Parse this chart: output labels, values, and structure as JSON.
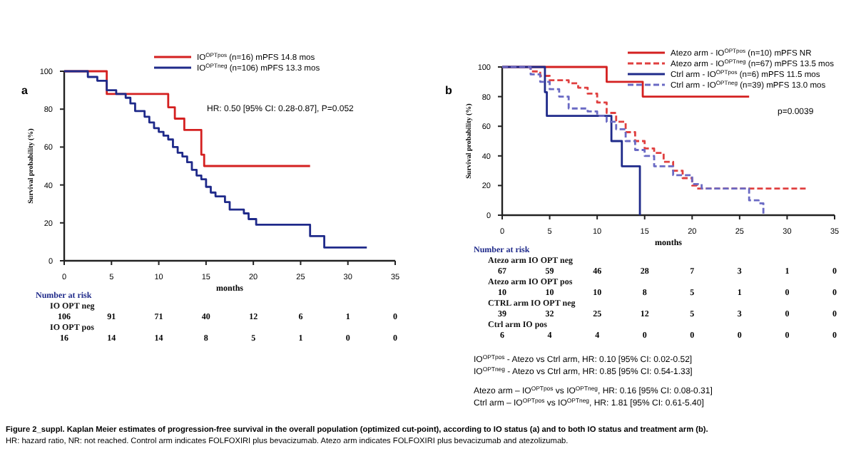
{
  "chart_data": [
    {
      "type": "step",
      "title": "a",
      "xlabel": "months",
      "ylabel": "Survival probability (%)",
      "xlim": [
        0,
        35
      ],
      "xticks": [
        0,
        5,
        10,
        15,
        20,
        25,
        30,
        35
      ],
      "ylim": [
        0,
        100
      ],
      "yticks": [
        0,
        20,
        40,
        60,
        80,
        100
      ],
      "legend": "top right",
      "series": [
        {
          "name": "IO$^{OPTpos}$ (n=16) mPFS 14.8 mos",
          "color": "#d42020",
          "line_style": "solid",
          "x": [
            0,
            4.5,
            11,
            11.7,
            12.7,
            14.5,
            14.8,
            26
          ],
          "values": [
            100,
            88,
            81,
            75,
            69,
            56,
            50,
            50
          ]
        },
        {
          "name": "IO$^{OPTneg}$ (n=106) mPFS 13.3 mos",
          "color": "#1f2a8a",
          "line_style": "solid",
          "x": [
            0,
            2.5,
            3.5,
            4.5,
            5.5,
            6.5,
            7,
            7.5,
            8.5,
            9,
            9.5,
            10,
            10.5,
            11,
            11.5,
            12,
            12.5,
            13,
            13.5,
            14,
            14.5,
            15,
            15.5,
            16,
            17,
            17.5,
            19,
            19.5,
            20.3,
            26,
            27.5,
            32
          ],
          "values": [
            100,
            97,
            95,
            90,
            88,
            86,
            83,
            79,
            76,
            73,
            70,
            68,
            66,
            64,
            60,
            57,
            55,
            52,
            48,
            45,
            43,
            39,
            36,
            34,
            31,
            27,
            25,
            22,
            19,
            13,
            7,
            7
          ]
        }
      ],
      "annotations": [
        "HR: 0.50 [95% CI: 0.28-0.87], P=0.052",
        "Number at risk",
        "IO OPT neg",
        "106 91 71 40 12 6 1 0",
        "IO OPT pos",
        "16 14 14 8 5 1 0 0"
      ]
    },
    {
      "type": "step",
      "title": "b",
      "xlabel": "months",
      "ylabel": "Survival probability (%)",
      "xlim": [
        0,
        35
      ],
      "xticks": [
        0,
        5,
        10,
        15,
        20,
        25,
        30,
        35
      ],
      "ylim": [
        0,
        100
      ],
      "yticks": [
        0,
        20,
        40,
        60,
        80,
        100
      ],
      "legend": "top right",
      "series": [
        {
          "name": "Atezo arm - IO$^{OPTpos}$ (n=10) mPFS NR",
          "color": "#d42020",
          "line_style": "solid",
          "x": [
            0,
            11,
            14.8,
            26
          ],
          "values": [
            100,
            90,
            80,
            80
          ]
        },
        {
          "name": "Atezo arm - IO$^{OPTneg}$ (n=67) mPFS 13.5 mos",
          "color": "#e04040",
          "line_style": "dashed",
          "x": [
            0,
            3,
            4,
            5,
            7,
            8,
            9,
            10,
            11,
            12,
            13,
            14,
            15,
            16,
            17,
            18,
            19,
            20,
            20.5,
            32
          ],
          "values": [
            100,
            97,
            94,
            91,
            89,
            86,
            82,
            76,
            69,
            63,
            56,
            50,
            45,
            42,
            36,
            30,
            25,
            20,
            18,
            18
          ]
        },
        {
          "name": "Ctrl arm - IO$^{OPTpos}$ (n=6) mPFS 11.5 mos",
          "color": "#1f2a8a",
          "line_style": "solid",
          "x": [
            0,
            4.5,
            4.7,
            11.5,
            12.6,
            14.5
          ],
          "values": [
            100,
            83,
            67,
            50,
            33,
            0
          ]
        },
        {
          "name": "Ctrl arm - IO$^{OPTneg}$ (n=39) mPFS 13.0 mos",
          "color": "#6a6ac4",
          "line_style": "dashed",
          "x": [
            0,
            3,
            4,
            5,
            6,
            7,
            9,
            10,
            11,
            12,
            13,
            14,
            15,
            16,
            18,
            20,
            21,
            26,
            27,
            27.5
          ],
          "values": [
            100,
            95,
            90,
            85,
            80,
            72,
            70,
            67,
            63,
            58,
            50,
            44,
            40,
            33,
            27,
            21,
            18,
            10,
            8,
            0
          ]
        }
      ],
      "annotations": [
        "p=0.0039",
        "Number at risk",
        "Atezo arm IO OPT neg",
        "67 59 46 28 7 3 1 0",
        "Atezo arm IO OPT pos",
        "10 10 10 8 5 1 0 0",
        "CTRL arm IO OPT neg",
        "39 32 25 12 5 3 0 0",
        "Ctrl arm IO pos",
        "6 4 4 0 0 0 0 0",
        "IO$^{OPTpos}$ - Atezo vs Ctrl arm, HR: 0.10 [95% CI: 0.02-0.52]",
        "IO$^{OPTneg}$ - Atezo vs Ctrl arm, HR: 0.85 [95% CI: 0.54-1.33]",
        "Atezo arm – IO$^{OPTpos}$ vs IO$^{OPTneg}$, HR: 0.16 [95% CI: 0.08-0.31]",
        "Ctrl arm – IO$^{OPTpos}$ vs IO$^{OPTneg}$, HR: 1.81 [95% CI: 0.61-5.40]"
      ]
    },
    {
      "type": "other",
      "title": "Figure 2_suppl. Kaplan Meier estimates of progression-free survival in the overall population (optimized cut-point), according to IO status (a) and to both IO status and treatment arm (b).",
      "annotations": [
        "HR: hazard ratio, NR: not reached. Control arm indicates FOLFOXIRI plus bevacizumab. Atezo arm indicates FOLFOXIRI plus bevacizumab and atezolizumab."
      ]
    }
  ]
}
